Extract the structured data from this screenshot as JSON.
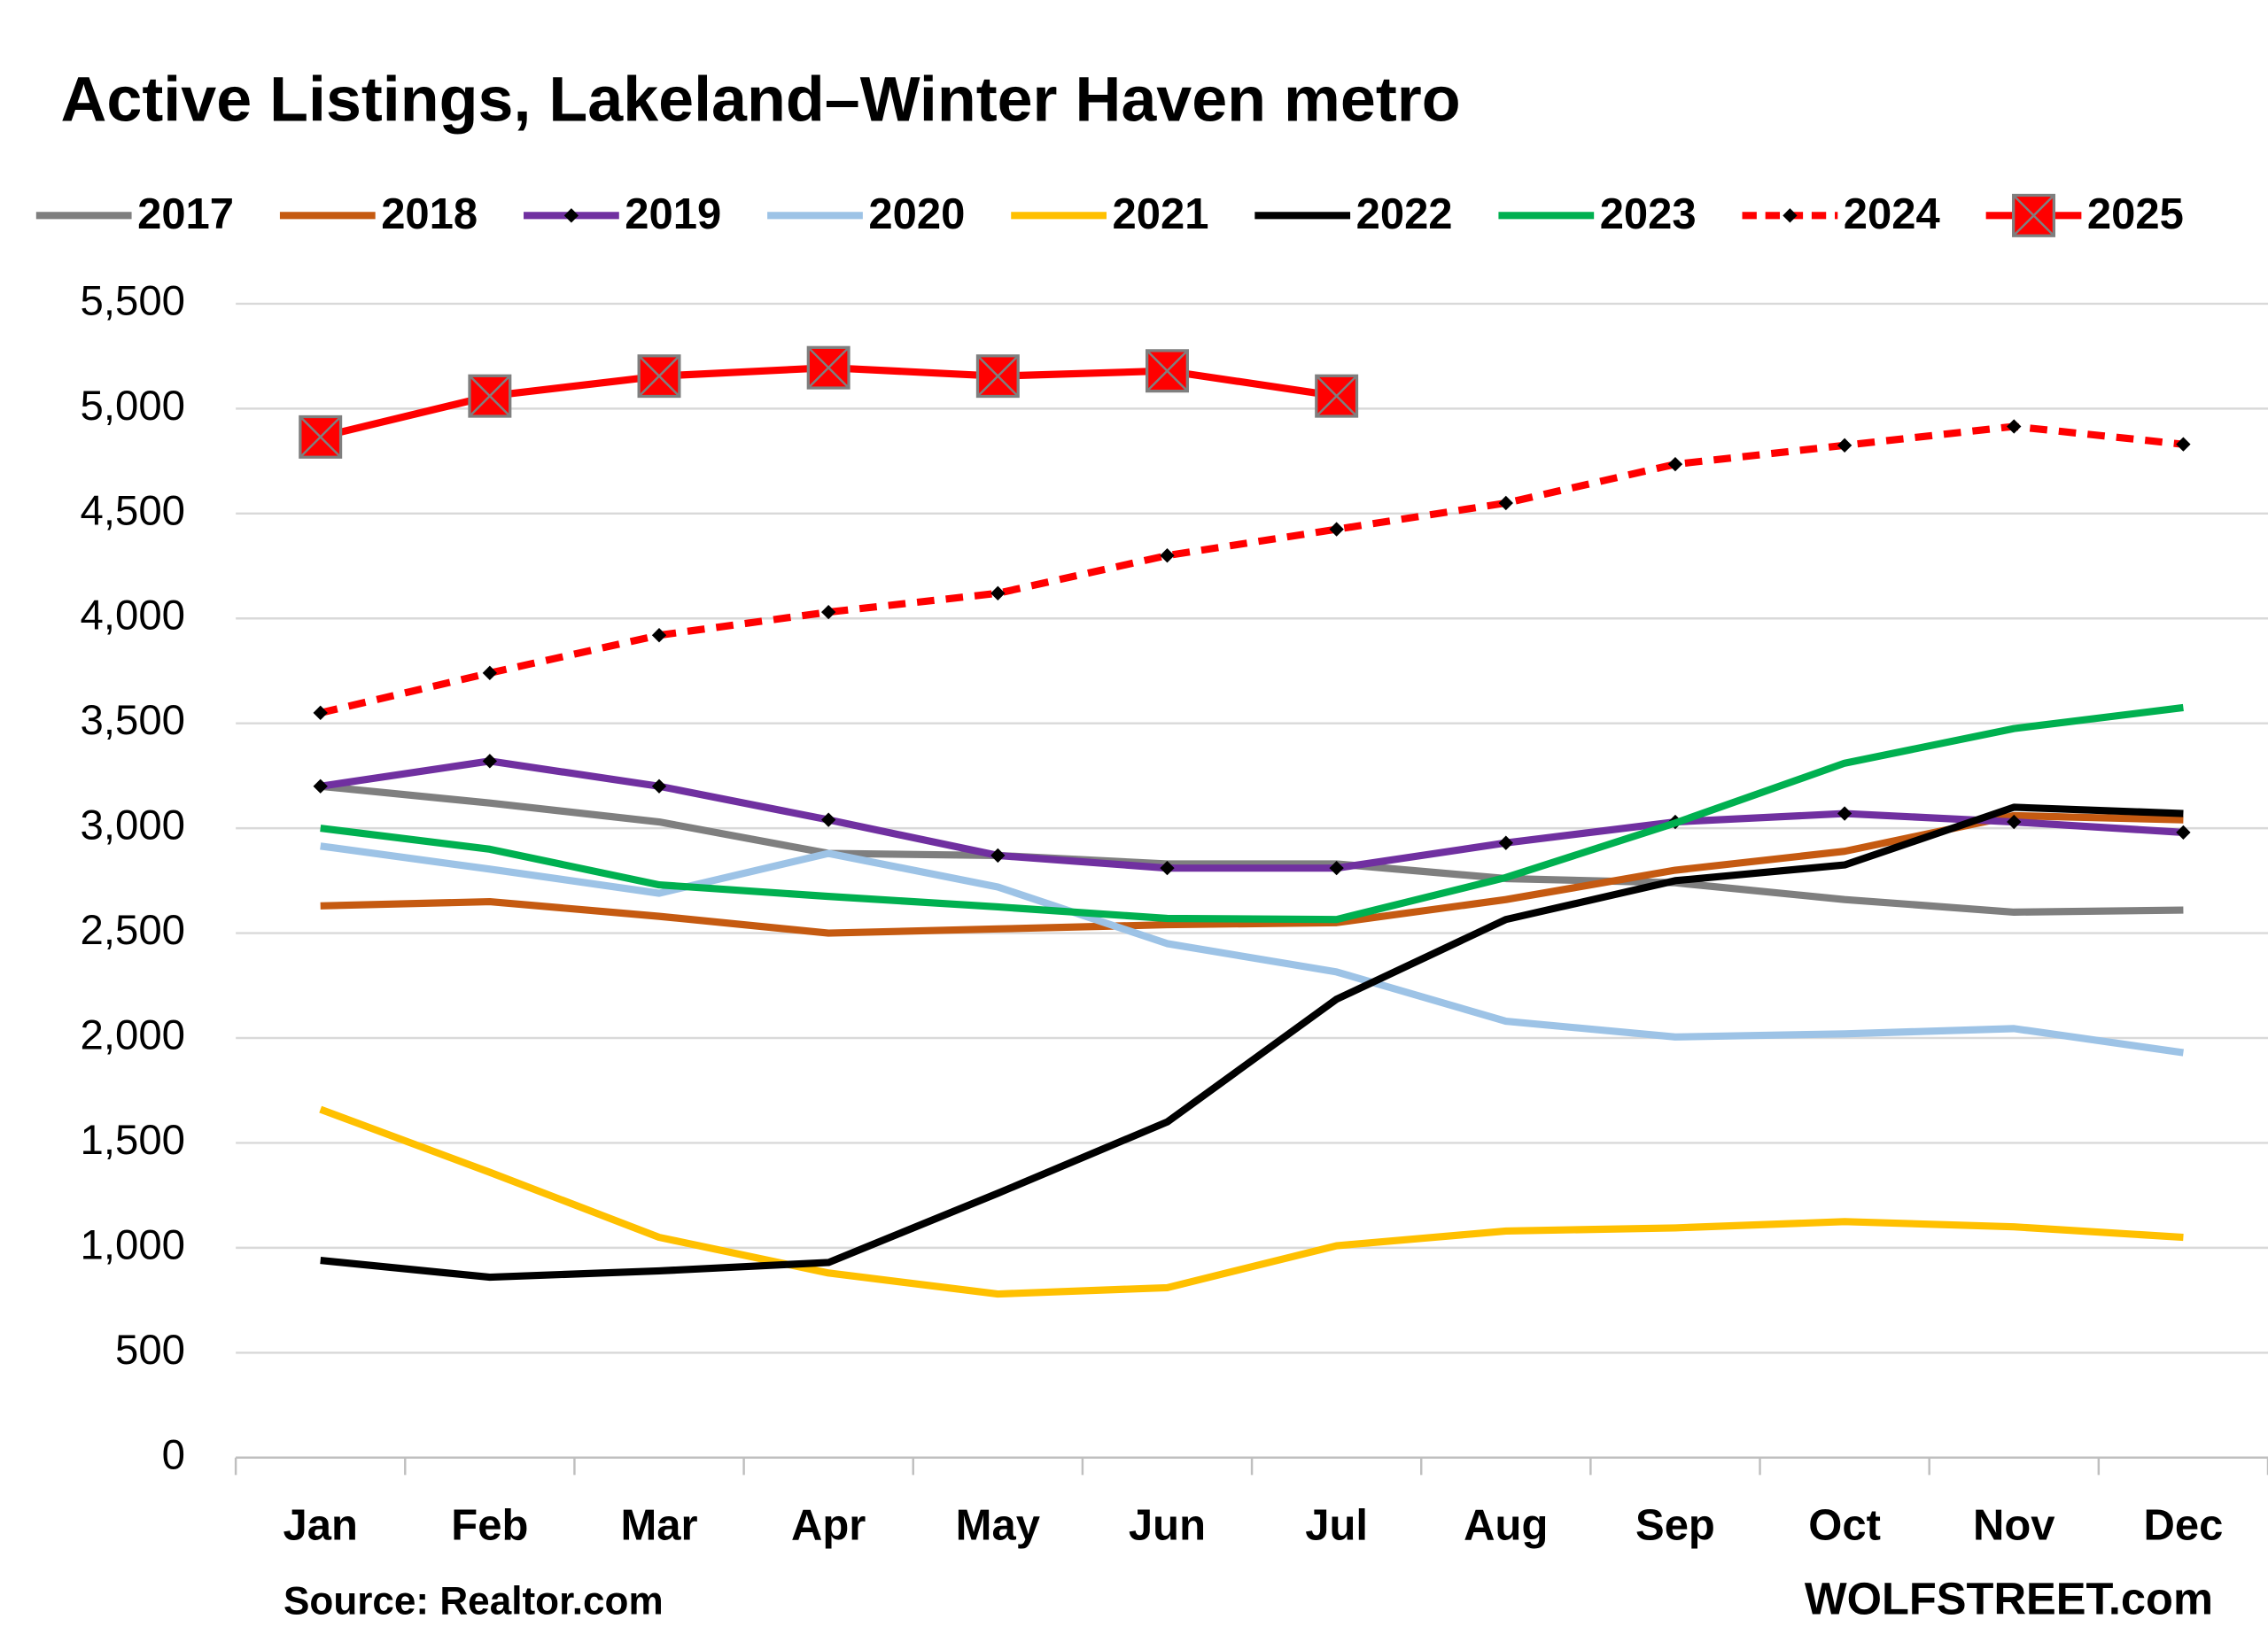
{
  "chart_data": {
    "type": "line",
    "title": "Active Listings, Lakeland–Winter Haven metro",
    "source": "Source: Realtor.com",
    "credit": "WOLFSTREET.com",
    "categories": [
      "Jan",
      "Feb",
      "Mar",
      "Apr",
      "May",
      "Jun",
      "Jul",
      "Aug",
      "Sep",
      "Oct",
      "Nov",
      "Dec"
    ],
    "series": [
      {
        "name": "2017",
        "color": "#7f7f7f",
        "values": [
          3200,
          3120,
          3030,
          2880,
          2870,
          2830,
          2830,
          2760,
          2740,
          2660,
          2600,
          2610
        ]
      },
      {
        "name": "2018",
        "color": "#c55a11",
        "values": [
          2630,
          2650,
          2580,
          2500,
          2520,
          2540,
          2550,
          2660,
          2800,
          2890,
          3060,
          3040
        ]
      },
      {
        "name": "2019",
        "color": "#7030a0",
        "marker": "diamond",
        "values": [
          3200,
          3320,
          3200,
          3040,
          2870,
          2810,
          2810,
          2930,
          3030,
          3070,
          3030,
          2980
        ]
      },
      {
        "name": "2020",
        "color": "#9dc3e6",
        "values": [
          2915,
          2805,
          2690,
          2880,
          2720,
          2450,
          2315,
          2080,
          2005,
          2020,
          2045,
          1930
        ]
      },
      {
        "name": "2021",
        "color": "#ffc000",
        "values": [
          1660,
          1360,
          1050,
          880,
          780,
          810,
          1010,
          1080,
          1095,
          1125,
          1100,
          1050
        ]
      },
      {
        "name": "2022",
        "color": "#000000",
        "values": [
          940,
          860,
          890,
          930,
          1260,
          1600,
          2185,
          2565,
          2750,
          2825,
          3100,
          3070
        ]
      },
      {
        "name": "2023",
        "color": "#00b050",
        "values": [
          3000,
          2900,
          2730,
          2675,
          2625,
          2570,
          2565,
          2765,
          3025,
          3310,
          3475,
          3575
        ]
      },
      {
        "name": "2024",
        "color": "#ff0000",
        "marker": "diamond",
        "dash": true,
        "values": [
          3550,
          3740,
          3920,
          4030,
          4120,
          4300,
          4425,
          4550,
          4735,
          4825,
          4915,
          4830
        ]
      },
      {
        "name": "2025",
        "color": "#ff0000",
        "marker": "square",
        "values": [
          4865,
          5060,
          5155,
          5195,
          5155,
          5180,
          5060,
          null,
          null,
          null,
          null,
          null
        ]
      }
    ],
    "ylim": [
      0,
      5500
    ],
    "yticks": [
      0,
      500,
      {
        "value": 1000,
        "label": "1,000"
      },
      {
        "value": 1500,
        "label": "1,500"
      },
      {
        "value": 2000,
        "label": "2,000"
      },
      {
        "value": 2500,
        "label": "2,500"
      },
      {
        "value": 3000,
        "label": "3,000"
      },
      {
        "value": 3500,
        "label": "3,500"
      },
      {
        "value": 4000,
        "label": "4,000"
      },
      {
        "value": 4500,
        "label": "4,500"
      },
      {
        "value": 5000,
        "label": "5,000"
      },
      {
        "value": 5500,
        "label": "5,500"
      }
    ],
    "grid": true,
    "legend": "top"
  }
}
